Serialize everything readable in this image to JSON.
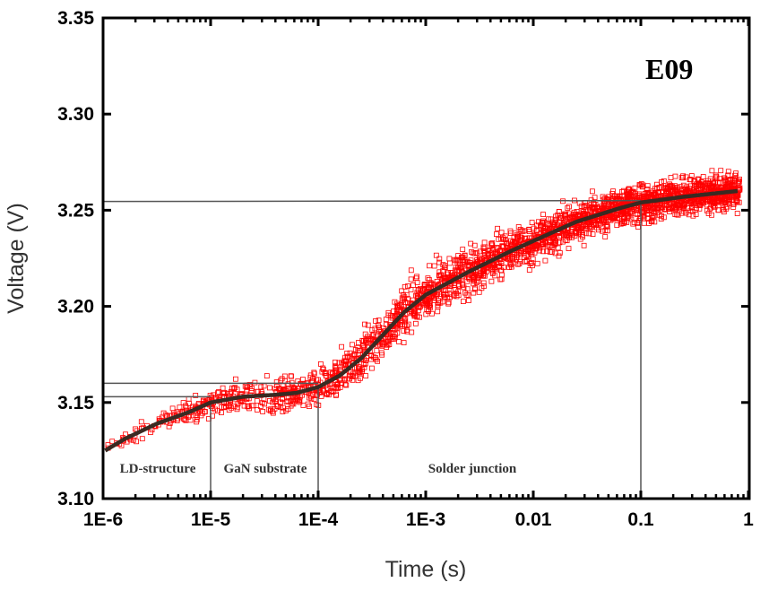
{
  "chart_data": {
    "type": "scatter",
    "title": "",
    "annotation": "E09",
    "xlabel": "Time (s)",
    "ylabel": "Voltage (V)",
    "xscale": "log",
    "xlim": [
      1e-06,
      1
    ],
    "ylim": [
      3.1,
      3.35
    ],
    "x_ticks": [
      {
        "v": 1e-06,
        "label": "1E-6"
      },
      {
        "v": 1e-05,
        "label": "1E-5"
      },
      {
        "v": 0.0001,
        "label": "1E-4"
      },
      {
        "v": 0.001,
        "label": "1E-3"
      },
      {
        "v": 0.01,
        "label": "0.01"
      },
      {
        "v": 0.1,
        "label": "0.1"
      },
      {
        "v": 1,
        "label": "1"
      }
    ],
    "y_ticks": [
      {
        "v": 3.1,
        "label": "3.10"
      },
      {
        "v": 3.15,
        "label": "3.15"
      },
      {
        "v": 3.2,
        "label": "3.20"
      },
      {
        "v": 3.25,
        "label": "3.25"
      },
      {
        "v": 3.3,
        "label": "3.30"
      },
      {
        "v": 3.35,
        "label": "3.35"
      }
    ],
    "series": [
      {
        "name": "measured",
        "marker": "open-square",
        "color": "#ff0000",
        "note": "dense noisy measurement around fit curve",
        "noise_v": [
          [
            -6,
            0.002
          ],
          [
            -5,
            0.004
          ],
          [
            -4.5,
            0.007
          ],
          [
            -4,
            0.006
          ],
          [
            -3.5,
            0.008
          ],
          [
            -3,
            0.008
          ],
          [
            -2,
            0.007
          ],
          [
            -1,
            0.006
          ],
          [
            -0.1,
            0.006
          ]
        ]
      },
      {
        "name": "fit",
        "color": "#3a2a22",
        "points": [
          [
            -5.98,
            3.125
          ],
          [
            -5.8,
            3.131
          ],
          [
            -5.5,
            3.139
          ],
          [
            -5.2,
            3.145
          ],
          [
            -5,
            3.15
          ],
          [
            -4.7,
            3.153
          ],
          [
            -4.4,
            3.154
          ],
          [
            -4.2,
            3.155
          ],
          [
            -4,
            3.158
          ],
          [
            -3.8,
            3.164
          ],
          [
            -3.6,
            3.173
          ],
          [
            -3.4,
            3.185
          ],
          [
            -3.2,
            3.197
          ],
          [
            -3,
            3.206
          ],
          [
            -2.6,
            3.218
          ],
          [
            -2.2,
            3.229
          ],
          [
            -2,
            3.234
          ],
          [
            -1.6,
            3.244
          ],
          [
            -1.2,
            3.251
          ],
          [
            -1,
            3.254
          ],
          [
            -0.6,
            3.257
          ],
          [
            -0.1,
            3.26
          ]
        ]
      }
    ],
    "reference_lines": {
      "horizontal": [
        {
          "y": 3.153,
          "x_to": 1e-05
        },
        {
          "y": 3.16,
          "x_to": 0.0001
        },
        {
          "y": 3.255,
          "x_to": 0.1
        }
      ],
      "vertical": [
        {
          "x": 1e-05,
          "y_to": 3.151
        },
        {
          "x": 0.0001,
          "y_to": 3.158
        },
        {
          "x": 0.1,
          "y_to": 3.255
        }
      ]
    },
    "regions": [
      {
        "label": "LD-structure",
        "x_from": 1e-06,
        "x_to": 1e-05
      },
      {
        "label": "GaN substrate",
        "x_from": 1e-05,
        "x_to": 0.0001
      },
      {
        "label": "Solder junction",
        "x_from": 0.0001,
        "x_to": 0.1
      }
    ],
    "grid": false
  }
}
